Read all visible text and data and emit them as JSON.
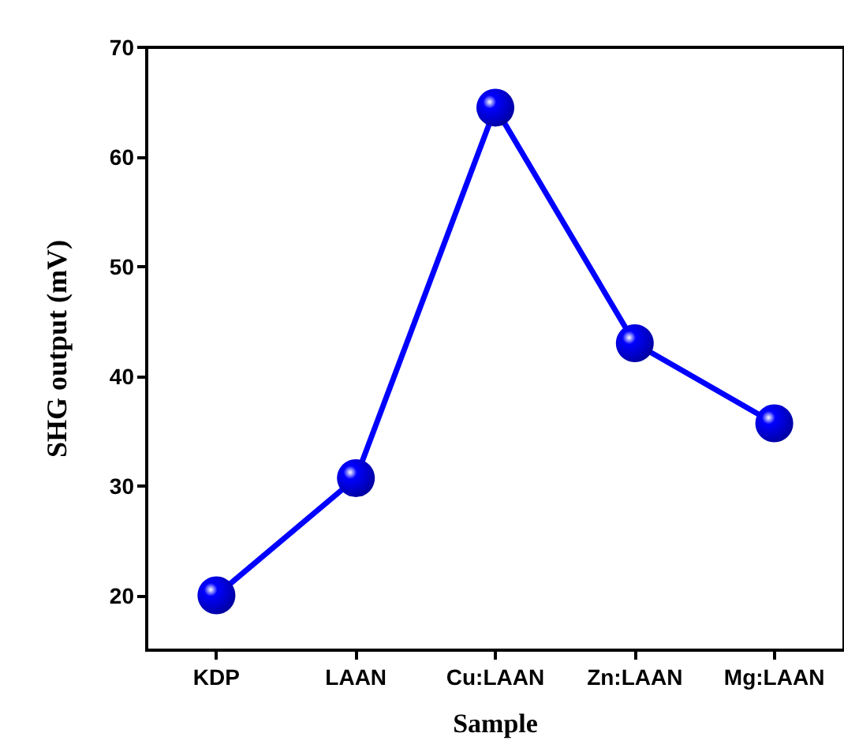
{
  "chart_data": {
    "type": "line",
    "xlabel": "Sample",
    "ylabel": "SHG output (mV)",
    "categories": [
      "KDP",
      "LAAN",
      "Cu:LAAN",
      "Zn:LAAN",
      "Mg:LAAN"
    ],
    "series": [
      {
        "color": "#0000ff",
        "values": [
          20.0,
          30.7,
          64.5,
          43.0,
          35.7
        ]
      }
    ],
    "ylim": [
      15,
      70
    ],
    "yticks": [
      20,
      30,
      40,
      50,
      60,
      70
    ],
    "grid": false,
    "marker": "circle",
    "line_style": "solid"
  }
}
